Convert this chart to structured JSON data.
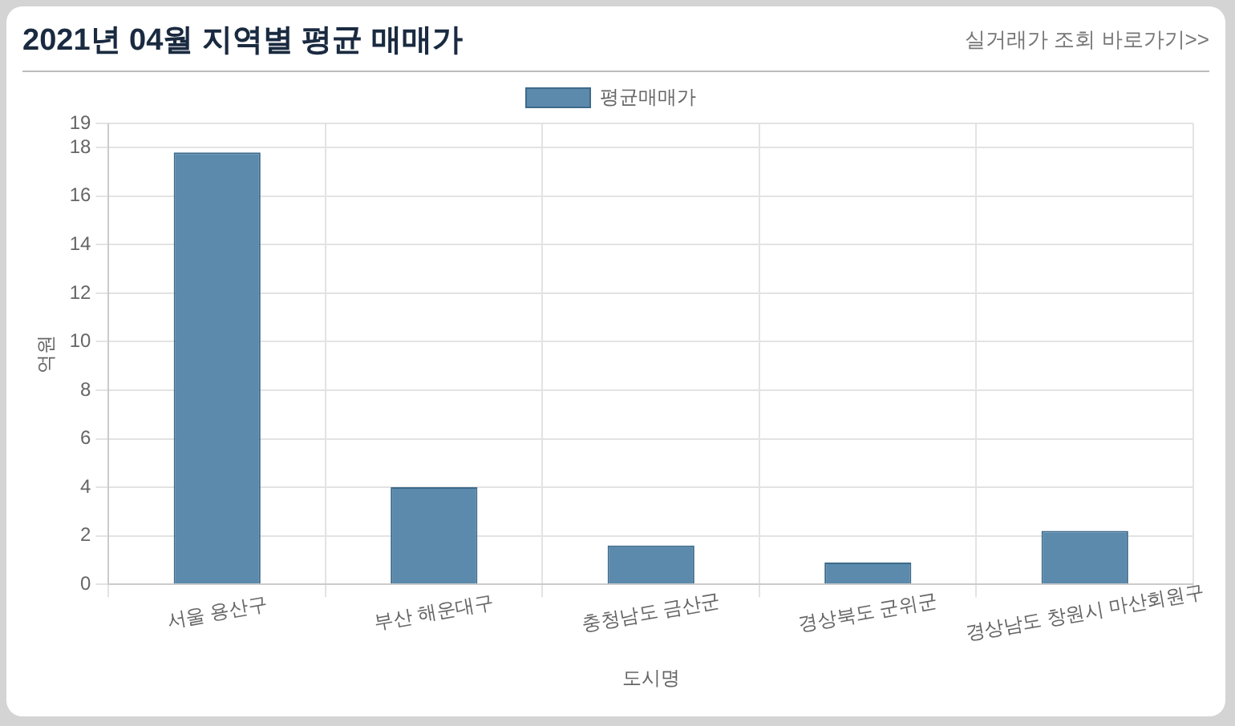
{
  "chart_data": {
    "type": "bar",
    "title": "2021년 04월 지역별 평균 매매가",
    "annotations": [
      "실거래가 조회 바로가기>>"
    ],
    "categories": [
      "서울 용산구",
      "부산 해운대구",
      "충청남도 금산군",
      "경상북도 군위군",
      "경상남도 창원시 마산회원구"
    ],
    "series": [
      {
        "name": "평균매매가",
        "color": "#5b8aad",
        "values": [
          17.8,
          4.0,
          1.6,
          0.9,
          2.2
        ]
      }
    ],
    "xlabel": "도시명",
    "ylabel": "억원",
    "ylim": [
      0,
      19
    ],
    "yticks": [
      0,
      2,
      4,
      6,
      8,
      10,
      12,
      14,
      16,
      18,
      19
    ],
    "grid": true,
    "legend": "top"
  }
}
